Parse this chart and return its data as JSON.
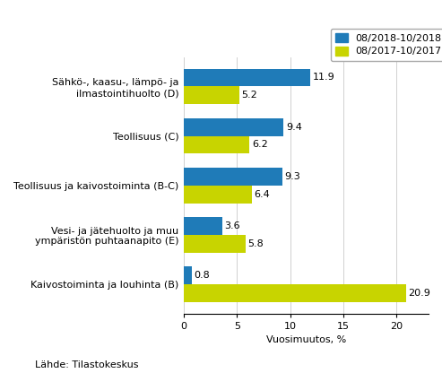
{
  "categories": [
    "Sähkö-, kaasu-, lämpö- ja\nilmastointihuolto (D)",
    "Teollisuus (C)",
    "Teollisuus ja kaivostoiminta (B-C)",
    "Vesi- ja jätehuolto ja muu\nympäristön puhtaanapito (E)",
    "Kaivostoiminta ja louhinta (B)"
  ],
  "series1_label": "08/2018-10/2018",
  "series2_label": "08/2017-10/2017",
  "series1_values": [
    11.9,
    9.4,
    9.3,
    3.6,
    0.8
  ],
  "series2_values": [
    5.2,
    6.2,
    6.4,
    5.8,
    20.9
  ],
  "series1_color": "#1F7BB8",
  "series2_color": "#C8D400",
  "xlabel": "Vuosimuutos, %",
  "xlim": [
    0,
    23
  ],
  "xticks": [
    0,
    5,
    10,
    15,
    20
  ],
  "bar_height": 0.36,
  "footnote": "Lähde: Tilastokeskus",
  "label_fontsize": 8.0,
  "tick_fontsize": 8.0,
  "annotation_fontsize": 8.0,
  "footnote_fontsize": 8.0,
  "legend_fontsize": 8.0
}
